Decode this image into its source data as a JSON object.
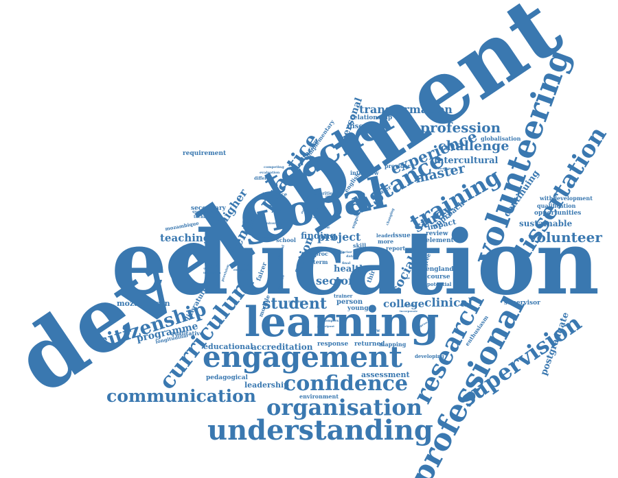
{
  "palette": {
    "primary": "#3a78b0",
    "secondary": "#5b92c4"
  },
  "words": {
    "development": "development",
    "education": "education",
    "international": "international",
    "learning": "learning",
    "engagement": "engagement",
    "global": "global",
    "teacher": "teacher",
    "volunteering": "volunteering",
    "understanding": "understanding",
    "professional": "professional",
    "organisation": "organisation",
    "communication": "communication",
    "confidence": "confidence",
    "research": "research",
    "supervision": "supervision",
    "dissertation": "dissertation",
    "curriculum": "curriculum",
    "citizenship": "citizenship",
    "distance": "distance",
    "practice": "practice",
    "training": "training",
    "experience": "experience",
    "transformation": "transformation",
    "profession": "profession",
    "challenge": "challenge",
    "master": "master",
    "volunteer": "volunteer",
    "student": "student",
    "project": "project",
    "study": "study",
    "sector": "sector",
    "health": "health",
    "social": "social",
    "action": "action",
    "dental": "dental",
    "higher": "higher",
    "teaching": "teaching",
    "college": "college",
    "clinical": "clinical",
    "intercultural": "intercultural",
    "personal": "personal",
    "sustainable": "sustainable",
    "continuing": "continuing",
    "postgraduate": "postgraduate",
    "programme": "programme",
    "mozambican": "mozambican",
    "finding": "finding",
    "approach": "approach",
    "impact": "impact",
    "educational": "educational",
    "accreditation": "accreditation",
    "assessment": "assessment",
    "leadership": "leadership",
    "pedagogical": "pedagogical",
    "relationship": "relationship",
    "discussion": "discussion",
    "globalisation": "globalisation",
    "healthcare": "healthcare",
    "complementary": "complementary",
    "requirement": "requirement",
    "secondary": "secondary",
    "mozambique": "mozambique",
    "literature": "literature",
    "qualitative": "qualitative",
    "longitudinal": "longitudinal",
    "withdevelopment": "withdevelopment",
    "qualification": "qualification",
    "opportunities": "opportunities",
    "review": "review",
    "element": "element",
    "course": "course",
    "policy": "policy",
    "degree": "degree",
    "england": "england",
    "potential": "potential",
    "supervisor": "supervisor",
    "enthusiasm": "enthusiasm",
    "response": "response",
    "returned": "returned",
    "mapping": "mapping",
    "developing": "developing",
    "environment": "environment",
    "interview": "interview",
    "provider": "provider",
    "english": "english",
    "greater": "greater",
    "young": "young",
    "person": "person",
    "issue": "issue",
    "more": "more",
    "report": "report",
    "influence": "influence",
    "school": "school",
    "skill": "skill",
    "term": "term",
    "third": "third",
    "competing": "competing",
    "evaluation": "evaluation",
    "different": "different",
    "priorities": "priorities",
    "university": "university",
    "technical": "technical",
    "questionnaire": "questionnaire",
    "fairer": "fairer",
    "module": "module",
    "trainer": "trainer",
    "value": "value",
    "factor": "factor",
    "leader": "leader",
    "data": "data",
    "support": "support",
    "final": "final",
    "article": "article",
    "incorporate": "incorporate",
    "complex": "complex",
    "participant": "participant",
    "relation": "relation",
    "economy": "economy",
    "reflective": "reflective",
    "provision": "provision",
    "important": "important",
    "national": "national",
    "proc": "proc",
    "management": "management",
    "creating": "creating",
    "mediating": "mediating",
    "changing": "changing",
    "local": "local",
    "new": "new",
    "field": "field",
    "role": "role",
    "unfurling": "unfurling",
    "implication": "implication",
    "procedure": "procedure",
    "approaches": "approaches"
  }
}
